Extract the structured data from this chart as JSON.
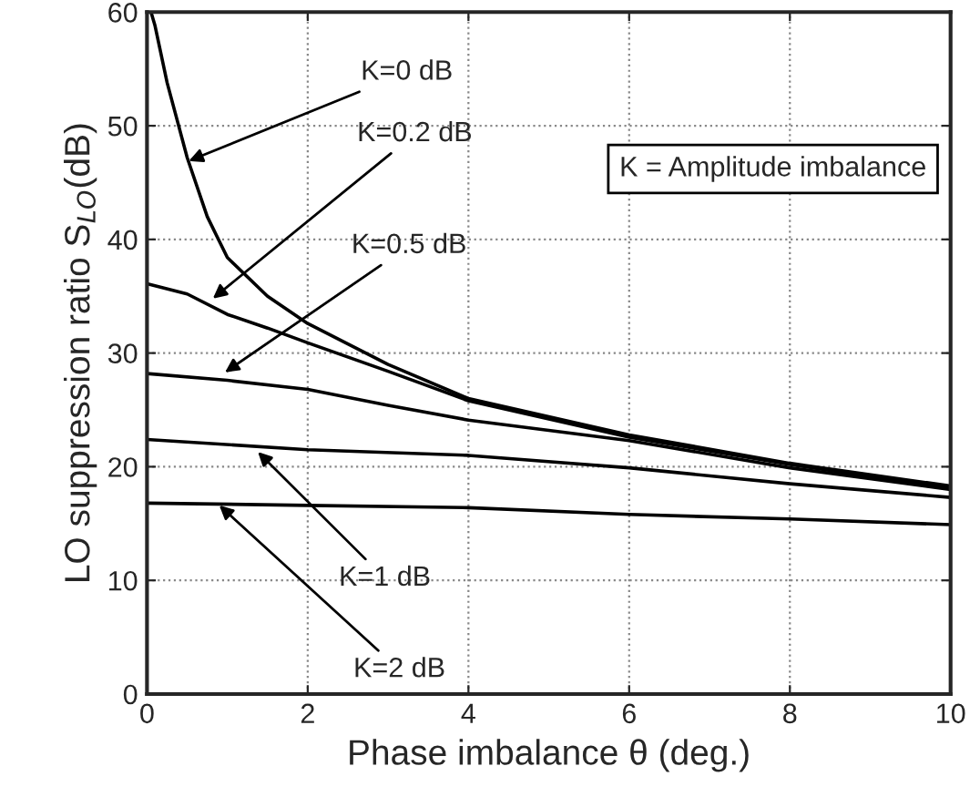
{
  "chart_data": {
    "type": "line",
    "xlabel": "Phase imbalance θ (deg.)",
    "ylabel": "LO suppression ratio S$_{LO}$(dB)",
    "series": [
      {
        "color": "#000000",
        "x": [
          0.05,
          0.1,
          0.25,
          0.5,
          0.75,
          1,
          1.5,
          2,
          3,
          4,
          6,
          8,
          10
        ],
        "values": [
          60,
          58.8,
          53.8,
          47.2,
          42,
          38.4,
          35,
          32.6,
          29,
          26,
          22.8,
          20.3,
          18.3
        ]
      },
      {
        "color": "#000000",
        "x": [
          0,
          0.5,
          1,
          1.5,
          2,
          3,
          4,
          6,
          8,
          10
        ],
        "values": [
          36.1,
          35.2,
          33.4,
          32.2,
          30.9,
          28.4,
          25.8,
          22.6,
          20.2,
          18.1
        ]
      },
      {
        "color": "#000000",
        "x": [
          0,
          1,
          2,
          3,
          4,
          6,
          8,
          10
        ],
        "values": [
          28.2,
          27.6,
          26.8,
          25.4,
          24.1,
          22.3,
          19.9,
          18.0
        ]
      },
      {
        "color": "#000000",
        "x": [
          0,
          2,
          4,
          6,
          8,
          10
        ],
        "values": [
          22.4,
          21.5,
          21.0,
          19.9,
          18.5,
          17.3
        ]
      },
      {
        "color": "#000000",
        "x": [
          0,
          2,
          4,
          6,
          8,
          10
        ],
        "values": [
          16.8,
          16.6,
          16.4,
          15.8,
          15.4,
          14.9
        ]
      }
    ],
    "annotations": [
      {
        "text": "K=0 dB",
        "x": 0.52,
        "y": 46.9
      },
      {
        "text": "K=0.2 dB",
        "x": 0.82,
        "y": 34.8
      },
      {
        "text": "K=0.5 dB",
        "x": 0.97,
        "y": 28.3
      },
      {
        "text": "K=1 dB",
        "x": 1.38,
        "y": 21.3
      },
      {
        "text": "K=2 dB",
        "x": 0.9,
        "y": 16.6
      },
      "K = Amplitude imbalance"
    ],
    "xlim": [
      0,
      10
    ],
    "xticks": [
      0,
      2,
      4,
      6,
      8,
      10
    ],
    "ylim": [
      0,
      60
    ],
    "yticks": [
      0,
      10,
      20,
      30,
      40,
      50,
      60
    ],
    "grid": true,
    "line_style": "solid",
    "marker": "none",
    "legend": false
  }
}
